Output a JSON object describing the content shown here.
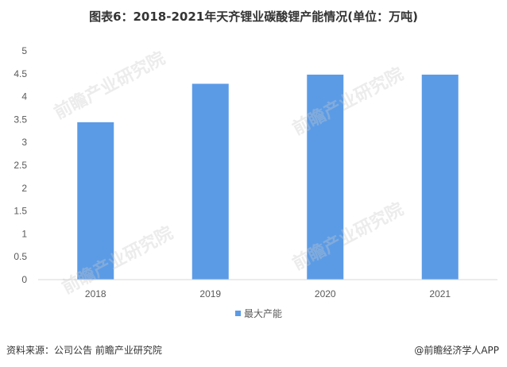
{
  "title": "图表6：2018-2021年天齐锂业碳酸锂产能情况(单位：万吨)",
  "source": "资料来源：公司公告 前瞻产业研究院",
  "credit": "@前瞻经济学人APP",
  "watermark": "前瞻产业研究院",
  "colors": {
    "bar": "#5B9BE6",
    "axis": "#d9d9d9",
    "text": "#595959"
  },
  "chart_data": {
    "type": "bar",
    "categories": [
      "2018",
      "2019",
      "2020",
      "2021"
    ],
    "series": [
      {
        "name": "最大产能",
        "values": [
          3.44,
          4.28,
          4.48,
          4.48
        ]
      }
    ],
    "ylim": [
      0,
      5
    ],
    "yticks": [
      "0",
      "0.5",
      "1",
      "1.5",
      "2",
      "2.5",
      "3",
      "3.5",
      "4",
      "4.5",
      "5"
    ],
    "grid": false,
    "legend": "bottom-center"
  }
}
